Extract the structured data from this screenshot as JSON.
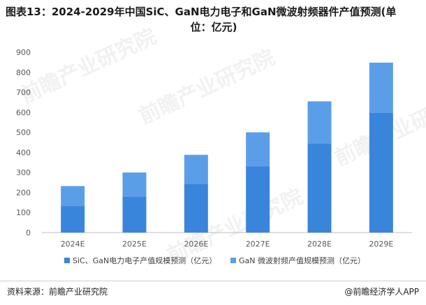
{
  "title": {
    "line1": "图表13：2024-2029年中国SiC、GaN电力电子和GaN微波射频器件产值预测(单",
    "line2": "位：亿元)"
  },
  "footer": {
    "source": "资料来源：前瞻产业研究院",
    "brand": "@前瞻经济学人APP"
  },
  "watermark": "前瞻产业研究院",
  "colors": {
    "series1": "#3a85dc",
    "series2": "#5b9ee8",
    "axis": "#bfbfbf",
    "tick_text": "#595959"
  },
  "chart_data": {
    "type": "bar",
    "stacked": true,
    "categories": [
      "2024E",
      "2025E",
      "2026E",
      "2027E",
      "2028E",
      "2029E"
    ],
    "series": [
      {
        "name": "SiC、GaN电力电子产值规模预测（亿元）",
        "values": [
          132,
          180,
          243,
          330,
          443,
          598
        ]
      },
      {
        "name": "GaN 微波射频产值规模预测（亿元）",
        "values": [
          100,
          120,
          145,
          170,
          212,
          250
        ]
      }
    ],
    "yticks": [
      0,
      100,
      200,
      300,
      400,
      500,
      600,
      700,
      800,
      900
    ],
    "ylim": [
      0,
      900
    ],
    "grid": false,
    "legend_position": "bottom"
  }
}
